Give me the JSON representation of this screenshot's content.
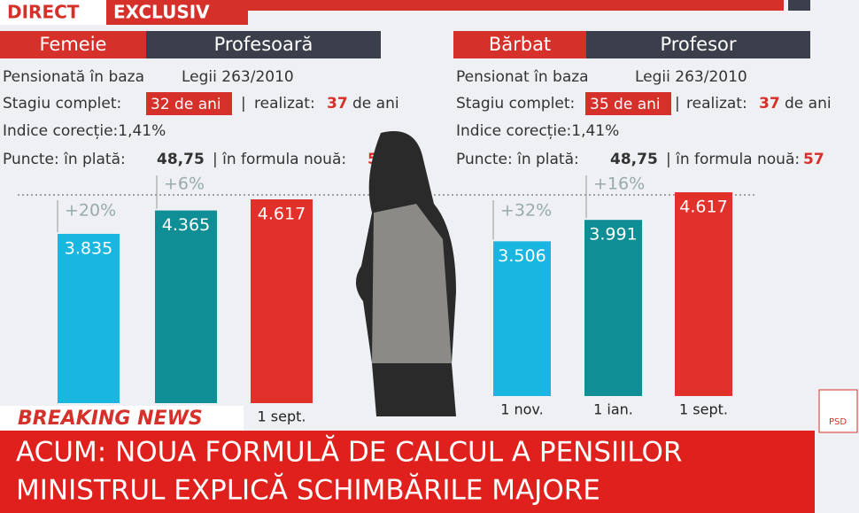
{
  "banner": {
    "direct": "DIRECT",
    "exclusiv": "EXCLUSIV"
  },
  "panels": [
    {
      "gender": "Femeie",
      "role": "Profesoară",
      "basis": "Pensionată în baza",
      "law": "Legii 263/2010",
      "stagiu_label": "Stagiu complet:",
      "stagiu_value": "32 de ani",
      "separator": "|",
      "realizat_label": "realizat:",
      "realizat_value": "37",
      "realizat_unit": "de ani",
      "indice": "Indice corecție:1,41%",
      "puncte_label": "Puncte: în plată:",
      "puncte_value": "48,75",
      "formula_label": "| în formula nouă:",
      "formula_value": "5"
    },
    {
      "gender": "Bărbat",
      "role": "Profesor",
      "basis": "Pensionat în baza",
      "law": "Legii 263/2010",
      "stagiu_label": "Stagiu complet:",
      "stagiu_value": "35 de ani",
      "separator": "|",
      "realizat_label": "realizat:",
      "realizat_value": "37",
      "realizat_unit": "de ani",
      "indice": "Indice corecție:1,41%",
      "puncte_label": "Puncte: în plată:",
      "puncte_value": "48,75",
      "formula_label": "| în formula nouă:",
      "formula_value": "57"
    }
  ],
  "chart_data": [
    {
      "type": "bar",
      "categories": [
        null,
        null,
        "1 sept."
      ],
      "values": [
        3835,
        4365,
        4617
      ],
      "value_labels": [
        "3.835",
        "4.365",
        "4.617"
      ],
      "colors": [
        "#19b6df",
        "#0f8e96",
        "#e2302b"
      ],
      "increases": [
        "+20%",
        "+6%"
      ]
    },
    {
      "type": "bar",
      "categories": [
        "1 nov.",
        "1 ian.",
        "1 sept."
      ],
      "values": [
        3506,
        3991,
        4617
      ],
      "value_labels": [
        "3.506",
        "3.991",
        "4.617"
      ],
      "colors": [
        "#19b6df",
        "#0f8e96",
        "#e2302b"
      ],
      "increases": [
        "+32%",
        "+16%"
      ]
    }
  ],
  "breaking": {
    "label": "BREAKING NEWS",
    "line1": "ACUM: NOUA FORMULĂ DE CALCUL A PENSIILOR",
    "line2": "MINISTRUL EXPLICĂ SCHIMBĂRILE MAJORE"
  },
  "logo": "PSD"
}
